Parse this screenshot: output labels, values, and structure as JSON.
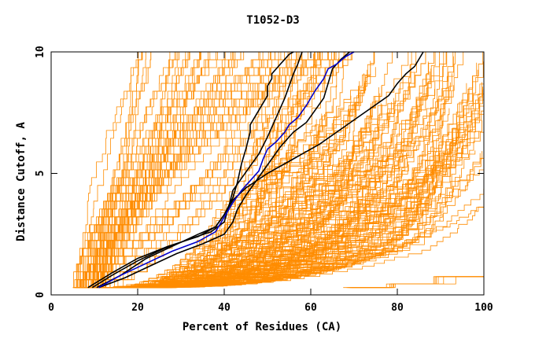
{
  "chart_data": {
    "type": "line",
    "title": "T1052-D3",
    "xlabel": "Percent of Residues (CA)",
    "ylabel": "Distance Cutoff, A",
    "xlim": [
      0,
      100
    ],
    "ylim": [
      0,
      10
    ],
    "x_ticks": [
      0,
      20,
      40,
      60,
      80,
      100
    ],
    "y_ticks": [
      0,
      5,
      10
    ],
    "grid": false,
    "legend": "none",
    "colors": {
      "background_models": "#ff8c00",
      "highlight_black": "#000000",
      "highlight_blue": "#0000cc"
    },
    "highlight_series": [
      {
        "color": "#000000",
        "x": [
          10.5,
          16,
          22,
          28,
          34,
          38,
          40,
          42,
          43,
          44,
          45,
          46,
          46,
          48,
          50,
          50,
          51,
          51,
          52,
          53,
          54,
          55,
          56
        ],
        "y": [
          0.3,
          0.8,
          1.5,
          2.0,
          2.5,
          2.8,
          3.3,
          4.0,
          4.6,
          5.4,
          6.0,
          6.7,
          7.0,
          7.6,
          8.2,
          8.6,
          8.9,
          9.1,
          9.3,
          9.5,
          9.7,
          9.9,
          10.0
        ]
      },
      {
        "color": "#000000",
        "x": [
          9.5,
          14,
          20,
          26,
          32,
          37,
          40,
          41,
          42,
          44,
          46,
          48,
          50,
          52,
          54,
          55,
          56,
          57,
          58
        ],
        "y": [
          0.3,
          0.8,
          1.4,
          1.9,
          2.3,
          2.6,
          3.0,
          3.6,
          4.3,
          4.8,
          5.3,
          5.8,
          6.5,
          7.3,
          8.1,
          8.6,
          9.1,
          9.5,
          10.0
        ]
      },
      {
        "color": "#000000",
        "x": [
          11,
          17,
          23,
          29,
          35,
          40,
          42,
          43,
          45,
          47,
          49,
          51,
          53,
          56,
          59,
          61,
          63,
          64,
          65,
          67,
          69
        ],
        "y": [
          0.3,
          0.7,
          1.2,
          1.7,
          2.1,
          2.5,
          3.0,
          3.5,
          4.1,
          4.6,
          5.1,
          5.6,
          6.1,
          6.7,
          7.1,
          7.6,
          8.1,
          8.7,
          9.3,
          9.7,
          10.0
        ]
      },
      {
        "color": "#000000",
        "x": [
          8.5,
          14,
          20,
          27,
          34,
          38,
          40,
          42,
          45,
          50,
          56,
          62,
          66,
          70,
          74,
          78,
          80,
          82,
          84,
          86
        ],
        "y": [
          0.3,
          0.9,
          1.5,
          2.0,
          2.4,
          2.8,
          3.3,
          3.9,
          4.4,
          5.0,
          5.6,
          6.2,
          6.7,
          7.2,
          7.7,
          8.2,
          8.7,
          9.1,
          9.4,
          10.0
        ]
      },
      {
        "color": "#0000cc",
        "x": [
          11,
          16,
          22,
          28,
          34,
          38,
          40,
          42,
          44,
          46,
          48,
          49,
          50,
          52,
          54,
          55,
          57,
          59,
          61,
          63,
          64,
          66,
          68,
          70
        ],
        "y": [
          0.3,
          0.8,
          1.3,
          1.8,
          2.2,
          2.6,
          3.2,
          3.8,
          4.3,
          4.7,
          5.1,
          5.6,
          6.0,
          6.3,
          6.7,
          7.0,
          7.3,
          7.8,
          8.4,
          8.9,
          9.3,
          9.5,
          9.8,
          10.0
        ]
      }
    ]
  }
}
